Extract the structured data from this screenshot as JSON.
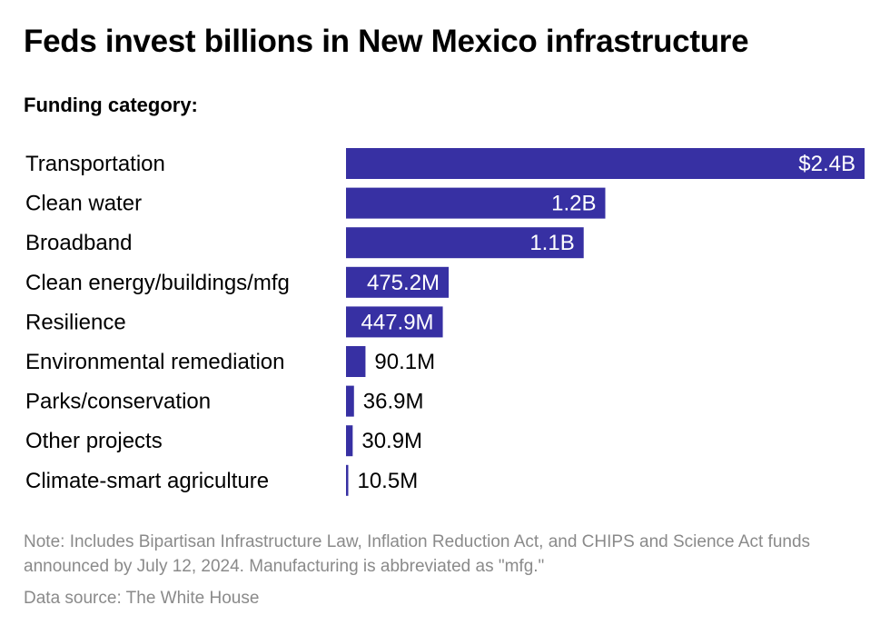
{
  "title": "Feds invest billions in New Mexico infrastructure",
  "subtitle": "Funding category:",
  "note": "Note: Includes Bipartisan Infrastructure Law, Inflation Reduction Act, and CHIPS and Science Act funds announced by July 12, 2024. Manufacturing is abbreviated as \"mfg.\"",
  "source": "Data source: The White House",
  "colors": {
    "bar": "#3730a3",
    "label_inside": "#ffffff",
    "label_outside": "#000000"
  },
  "chart_data": {
    "type": "bar",
    "orientation": "horizontal",
    "categories": [
      "Transportation",
      "Clean water",
      "Broadband",
      "Clean energy/buildings/mfg",
      "Resilience",
      "Environmental remediation",
      "Parks/conservation",
      "Other projects",
      "Climate-smart agriculture"
    ],
    "values": [
      2400,
      1200,
      1100,
      475.2,
      447.9,
      90.1,
      36.9,
      30.9,
      10.5
    ],
    "value_unit": "millions of dollars",
    "data_labels": [
      "$2.4B",
      "1.2B",
      "1.1B",
      "475.2M",
      "447.9M",
      "90.1M",
      "36.9M",
      "30.9M",
      "10.5M"
    ],
    "xlim": [
      0,
      2400
    ],
    "grid": false,
    "legend": false
  }
}
